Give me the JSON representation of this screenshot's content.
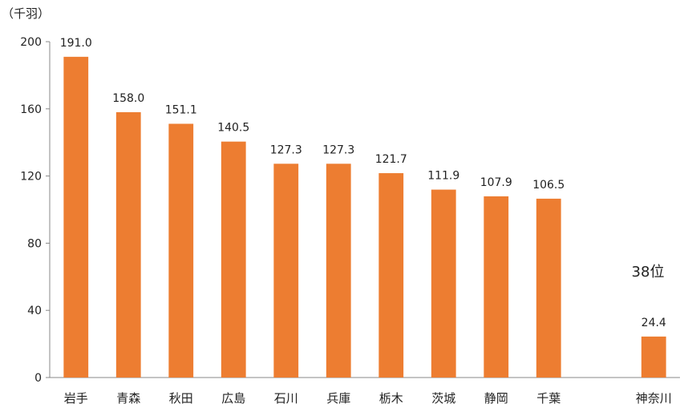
{
  "chart_data": {
    "type": "bar",
    "unit_label": "（千羽）",
    "categories": [
      "岩手",
      "青森",
      "秋田",
      "広島",
      "石川",
      "兵庫",
      "栃木",
      "茨城",
      "静岡",
      "千葉",
      "",
      "神奈川"
    ],
    "values": [
      191.0,
      158.0,
      151.1,
      140.5,
      127.3,
      127.3,
      121.7,
      111.9,
      107.9,
      106.5,
      null,
      24.4
    ],
    "data_labels": [
      "191.0",
      "158.0",
      "151.1",
      "140.5",
      "127.3",
      "127.3",
      "121.7",
      "111.9",
      "107.9",
      "106.5",
      "",
      "24.4"
    ],
    "yticks": [
      "0",
      "40",
      "80",
      "120",
      "160",
      "200"
    ],
    "ylim": [
      0,
      200
    ],
    "annotation": "38位",
    "bar_color": "#ED7D31",
    "grid": false,
    "legend": "none"
  }
}
